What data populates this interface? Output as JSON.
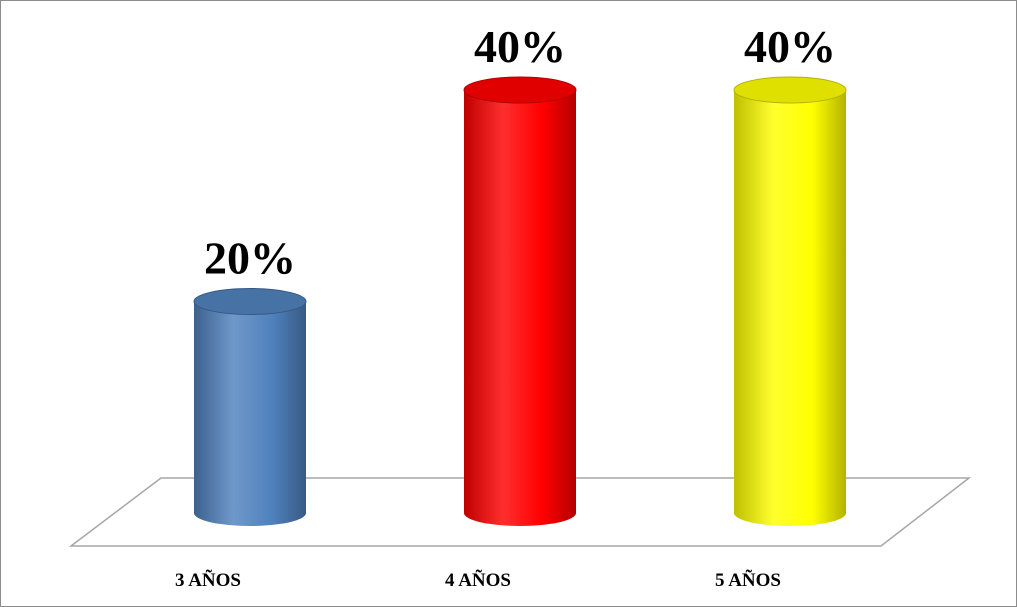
{
  "chart_data": {
    "type": "bar",
    "style": "3d-cylinder",
    "categories": [
      "3 AÑOS",
      "4 AÑOS",
      "5 AÑOS"
    ],
    "values": [
      20,
      40,
      40
    ],
    "data_labels": [
      "20%",
      "40%",
      "40%"
    ],
    "unit": "%",
    "ylim": [
      0,
      40
    ],
    "grid": false,
    "legend": "none",
    "colors": [
      "#4f81bd",
      "#ff0000",
      "#ffff00"
    ]
  }
}
